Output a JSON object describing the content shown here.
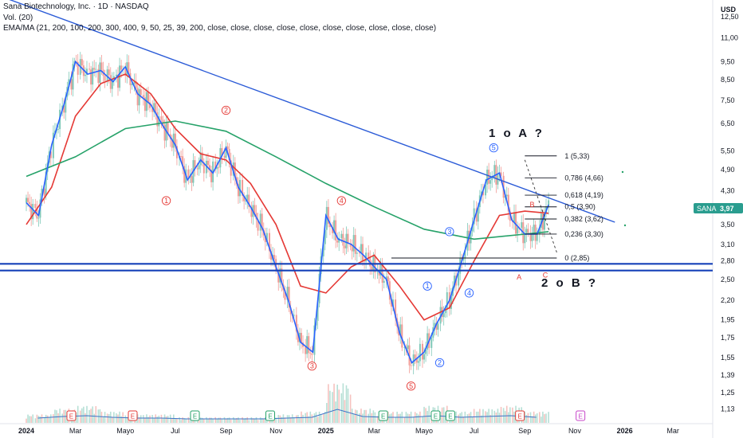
{
  "header": {
    "title": "Sana Biotechnology, Inc. · 1D · NASDAQ",
    "volume": "Vol. (20)",
    "indicators": "EMA/MA (21, 200, 100, 200, 300, 400, 9, 50, 25, 39, 200, close, close, close, close, close, close, close, close, close, close)"
  },
  "currency": "USD",
  "colors": {
    "price_line": "#2962ff",
    "ema_red": "#e53935",
    "ma_green": "#26a269",
    "trend": "#2b5bd7",
    "support": "#1540b8",
    "candle_up": "#7fc8b8",
    "candle_down": "#f19b96",
    "volume_up": "#b7e0d6",
    "volume_down": "#f6c2bf",
    "volume_ma": "#3d73c7",
    "wave_red": "#e53935",
    "wave_blue": "#2962ff",
    "badge_green": "#26a269",
    "badge_red": "#e53935",
    "badge_purple": "#c744c9",
    "tag_bg": "#2a9d8f"
  },
  "price_tag": {
    "symbol": "SANA",
    "value": "3,97"
  },
  "annotations": {
    "scenario_a": "1 o A ?",
    "scenario_b": "2 o B ?"
  },
  "chart_data": {
    "type": "line",
    "title": "Sana Biotechnology, Inc. · 1D · NASDAQ",
    "y_scale": "log",
    "ylim": [
      1.1,
      13.2
    ],
    "y_ticks": [
      "12,50",
      "11,00",
      "9,50",
      "8,50",
      "7,50",
      "6,50",
      "5,50",
      "4,90",
      "4,30",
      "3,90",
      "3,50",
      "3,10",
      "2,80",
      "2,50",
      "2,20",
      "1,95",
      "1,75",
      "1,55",
      "1,39",
      "1,25",
      "1,13"
    ],
    "y_tick_values": [
      12.5,
      11,
      9.5,
      8.5,
      7.5,
      6.5,
      5.5,
      4.9,
      4.3,
      3.9,
      3.5,
      3.1,
      2.8,
      2.5,
      2.2,
      1.95,
      1.75,
      1.55,
      1.39,
      1.25,
      1.13
    ],
    "x_ticks": [
      "2024",
      "Mar",
      "Mayo",
      "Jul",
      "Sep",
      "Nov",
      "2025",
      "Mar",
      "Mayo",
      "Jul",
      "Sep",
      "Nov",
      "2026",
      "Mar"
    ],
    "x_tick_dates": [
      "2024-01",
      "2024-03",
      "2024-05",
      "2024-07",
      "2024-09",
      "2024-11",
      "2025-01",
      "2025-03",
      "2025-05",
      "2025-07",
      "2025-09",
      "2025-11",
      "2026-01",
      "2026-03"
    ],
    "price": {
      "x": [
        "2024-01-01",
        "2024-01-16",
        "2024-02-01",
        "2024-02-16",
        "2024-03-01",
        "2024-03-16",
        "2024-04-01",
        "2024-04-16",
        "2024-05-01",
        "2024-05-16",
        "2024-06-01",
        "2024-06-16",
        "2024-07-01",
        "2024-07-16",
        "2024-08-01",
        "2024-08-16",
        "2024-09-01",
        "2024-09-16",
        "2024-10-01",
        "2024-10-16",
        "2024-11-01",
        "2024-11-16",
        "2024-12-01",
        "2024-12-16",
        "2025-01-01",
        "2025-01-16",
        "2025-02-01",
        "2025-02-16",
        "2025-03-01",
        "2025-03-16",
        "2025-04-01",
        "2025-04-16",
        "2025-05-01",
        "2025-05-16",
        "2025-06-01",
        "2025-06-16",
        "2025-07-01",
        "2025-07-16",
        "2025-08-01",
        "2025-08-16",
        "2025-09-01",
        "2025-09-16",
        "2025-09-30"
      ],
      "values": [
        4.0,
        3.7,
        5.7,
        7.3,
        9.5,
        8.8,
        9.0,
        8.4,
        9.2,
        7.8,
        7.3,
        6.4,
        5.7,
        4.6,
        5.2,
        4.8,
        5.6,
        4.4,
        3.9,
        3.4,
        2.7,
        2.2,
        1.7,
        1.6,
        3.7,
        3.2,
        3.1,
        2.9,
        2.7,
        2.5,
        1.8,
        1.5,
        1.6,
        1.9,
        2.2,
        2.8,
        3.6,
        4.6,
        4.8,
        3.6,
        3.3,
        3.3,
        3.95
      ]
    },
    "series": [
      {
        "name": "EMA 21",
        "x": [
          "2024-01-01",
          "2024-02-01",
          "2024-03-01",
          "2024-04-01",
          "2024-05-01",
          "2024-06-01",
          "2024-07-01",
          "2024-08-01",
          "2024-09-01",
          "2024-10-01",
          "2024-11-01",
          "2024-12-01",
          "2025-01-01",
          "2025-02-01",
          "2025-03-01",
          "2025-04-01",
          "2025-05-01",
          "2025-06-01",
          "2025-07-01",
          "2025-08-01",
          "2025-09-01",
          "2025-09-30"
        ],
        "values": [
          3.5,
          4.4,
          6.8,
          8.3,
          8.8,
          7.8,
          6.3,
          5.4,
          5.2,
          4.5,
          3.5,
          2.4,
          2.3,
          2.7,
          2.9,
          2.4,
          1.95,
          2.1,
          2.8,
          3.7,
          3.8,
          3.75
        ]
      },
      {
        "name": "MA 200",
        "x": [
          "2024-01-01",
          "2024-03-01",
          "2024-05-01",
          "2024-07-01",
          "2024-09-01",
          "2024-11-01",
          "2025-01-01",
          "2025-03-01",
          "2025-05-01",
          "2025-07-01",
          "2025-09-01",
          "2025-09-30"
        ],
        "values": [
          4.7,
          5.3,
          6.3,
          6.6,
          6.2,
          5.3,
          4.5,
          3.9,
          3.4,
          3.2,
          3.3,
          3.35
        ]
      }
    ],
    "volume": {
      "x": [
        "2024-01",
        "2024-02",
        "2024-03",
        "2024-04",
        "2024-05",
        "2024-06",
        "2024-07",
        "2024-08",
        "2024-09",
        "2024-10",
        "2024-11",
        "2024-12",
        "2025-01",
        "2025-02",
        "2025-03",
        "2025-04",
        "2025-05",
        "2025-06",
        "2025-07",
        "2025-08",
        "2025-09"
      ],
      "values": [
        3,
        5,
        6,
        4,
        3,
        3,
        2,
        2,
        2,
        2,
        3,
        4,
        14,
        5,
        4,
        4,
        6,
        4,
        5,
        6,
        4
      ]
    },
    "fibonacci": [
      {
        "label": "1 (5,33)",
        "value": 5.33
      },
      {
        "label": "0,786 (4,66)",
        "value": 4.66
      },
      {
        "label": "0,618 (4,19)",
        "value": 4.19
      },
      {
        "label": "0,5 (3,90)",
        "value": 3.9
      },
      {
        "label": "0,382 (3,62)",
        "value": 3.62
      },
      {
        "label": "0,236 (3,30)",
        "value": 3.3
      },
      {
        "label": "0 (2,85)",
        "value": 2.85
      }
    ],
    "trendline": {
      "x": [
        "2024-01-01",
        "2025-12-20"
      ],
      "values": [
        14.2,
        3.55
      ]
    },
    "support_levels": [
      2.75,
      2.64
    ],
    "wave_labels": [
      {
        "label": "1",
        "color": "red",
        "x": "2024-06-20",
        "y": 4.05
      },
      {
        "label": "2",
        "color": "red",
        "x": "2024-09-01",
        "y": 7.05
      },
      {
        "label": "3",
        "color": "red",
        "x": "2024-12-15",
        "y": 1.47
      },
      {
        "label": "4",
        "color": "red",
        "x": "2025-01-20",
        "y": 4.05
      },
      {
        "label": "5",
        "color": "red",
        "x": "2025-04-15",
        "y": 1.3
      },
      {
        "label": "1",
        "color": "blue",
        "x": "2025-05-05",
        "y": 2.4
      },
      {
        "label": "2",
        "color": "blue",
        "x": "2025-05-20",
        "y": 1.5
      },
      {
        "label": "3",
        "color": "blue",
        "x": "2025-06-01",
        "y": 3.35
      },
      {
        "label": "4",
        "color": "blue",
        "x": "2025-06-25",
        "y": 2.3
      },
      {
        "label": "5",
        "color": "blue",
        "x": "2025-07-25",
        "y": 5.6
      },
      {
        "label": "A",
        "color": "red",
        "x": "2025-08-25",
        "y": 2.55
      },
      {
        "label": "B",
        "color": "red",
        "x": "2025-09-10",
        "y": 3.97
      },
      {
        "label": "C",
        "color": "red",
        "x": "2025-09-26",
        "y": 2.58
      }
    ],
    "event_badges": [
      {
        "label": "E",
        "color": "red",
        "x": "2024-02-25"
      },
      {
        "label": "E",
        "color": "red",
        "x": "2024-05-10"
      },
      {
        "label": "E",
        "color": "green",
        "x": "2024-07-25"
      },
      {
        "label": "E",
        "color": "green",
        "x": "2024-10-25"
      },
      {
        "label": "E",
        "color": "green",
        "x": "2025-03-12"
      },
      {
        "label": "E",
        "color": "green",
        "x": "2025-05-15"
      },
      {
        "label": "E",
        "color": "green",
        "x": "2025-06-02"
      },
      {
        "label": "E",
        "color": "red",
        "x": "2025-08-26"
      },
      {
        "label": "E",
        "color": "purple",
        "x": "2025-11-08"
      }
    ]
  }
}
